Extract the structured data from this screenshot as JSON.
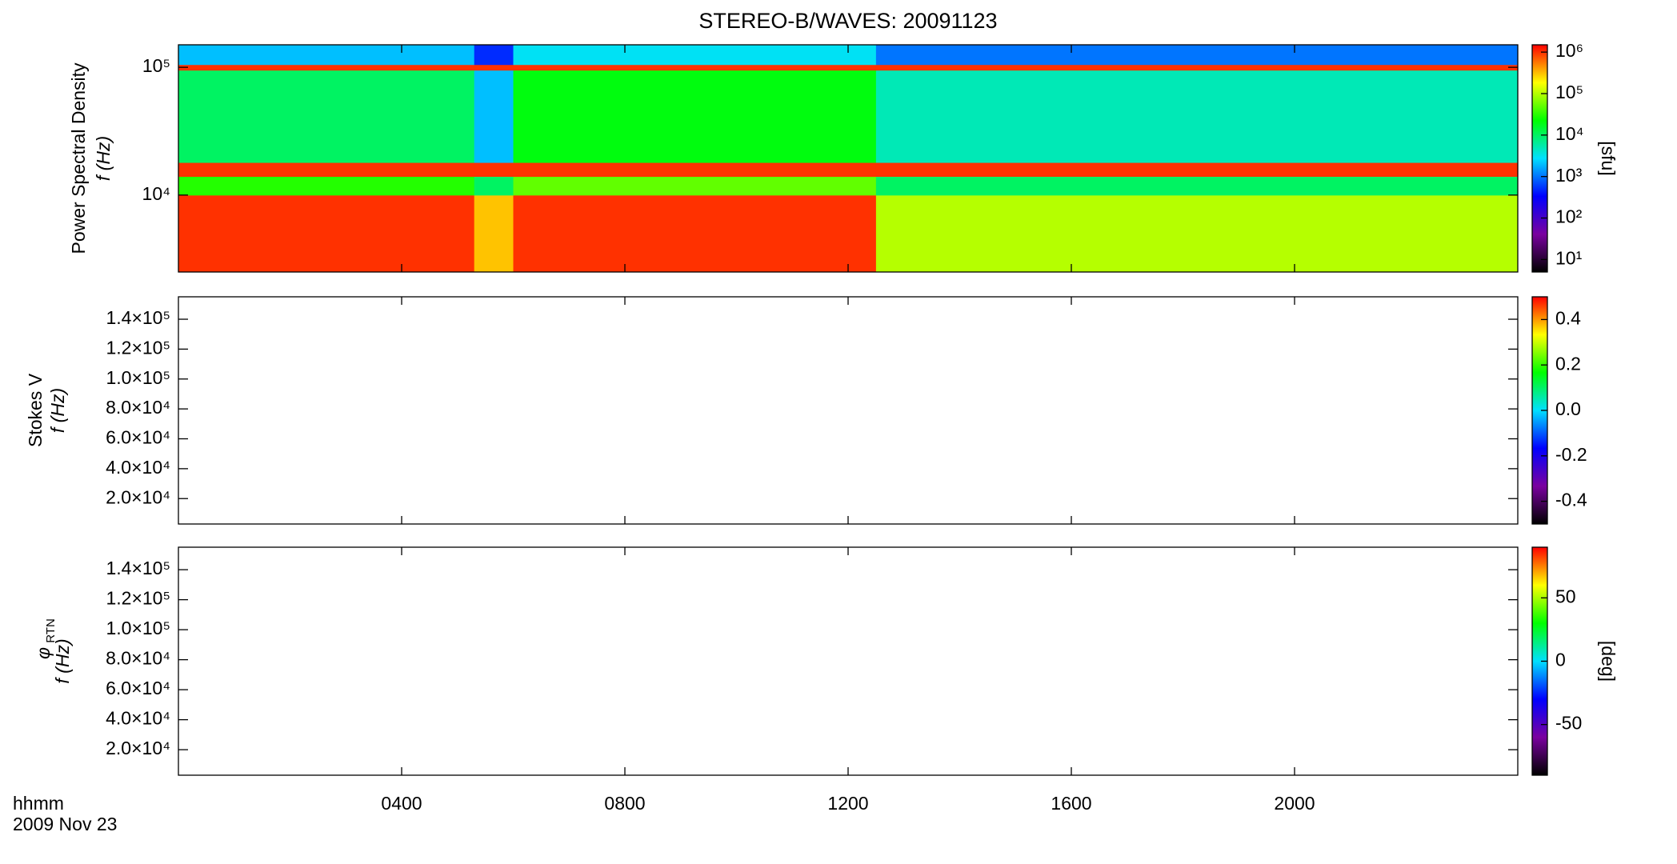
{
  "title": "STEREO-B/WAVES: 20091123",
  "time_axis": {
    "xlim": [
      0,
      24
    ],
    "xticks": [
      {
        "value": 4,
        "label": "0400"
      },
      {
        "value": 8,
        "label": "0800"
      },
      {
        "value": 12,
        "label": "1200"
      },
      {
        "value": 16,
        "label": "1600"
      },
      {
        "value": 20,
        "label": "2000"
      }
    ],
    "label_lines": [
      "hhmm",
      "2009 Nov 23"
    ]
  },
  "colorscale": [
    "#000000",
    "#7a00a0",
    "#0000ff",
    "#00e0ff",
    "#00ff00",
    "#ffff00",
    "#ff0000"
  ],
  "chart_data": [
    {
      "type": "heatmap",
      "ylabel": [
        "Power Spectral Density",
        "f (Hz)"
      ],
      "log_y": true,
      "ylim": [
        2500,
        150000
      ],
      "yticks": [
        {
          "value": 10000,
          "label": "10⁴"
        },
        {
          "value": 100000,
          "label": "10⁵"
        }
      ],
      "x_edges": [
        0,
        5.3,
        6.0,
        12.5,
        24
      ],
      "y_edges": [
        2500,
        10000,
        14000,
        18000,
        95000,
        105000,
        150000
      ],
      "values": [
        [
          1000000,
          300000,
          1000000,
          100000
        ],
        [
          30000,
          10000,
          50000,
          10000
        ],
        [
          1000000,
          1000000,
          1000000,
          1000000
        ],
        [
          10000,
          2000,
          20000,
          5000
        ],
        [
          1000000,
          1000000,
          1000000,
          1000000
        ],
        [
          2000,
          500,
          3000,
          1000
        ]
      ],
      "colorbar": {
        "log": true,
        "lim": [
          5,
          1500000
        ],
        "label": "[sfu]",
        "ticks": [
          {
            "value": 10,
            "label": "10¹"
          },
          {
            "value": 100,
            "label": "10²"
          },
          {
            "value": 1000,
            "label": "10³"
          },
          {
            "value": 10000,
            "label": "10⁴"
          },
          {
            "value": 100000,
            "label": "10⁵"
          },
          {
            "value": 1000000,
            "label": "10⁶"
          }
        ]
      }
    },
    {
      "type": "heatmap",
      "ylabel": [
        "Stokes V",
        "f (Hz)"
      ],
      "log_y": false,
      "ylim": [
        3000,
        155000
      ],
      "yticks": [
        {
          "value": 20000,
          "label": "2.0×10⁴"
        },
        {
          "value": 40000,
          "label": "4.0×10⁴"
        },
        {
          "value": 60000,
          "label": "6.0×10⁴"
        },
        {
          "value": 80000,
          "label": "8.0×10⁴"
        },
        {
          "value": 100000,
          "label": "1.0×10⁵"
        },
        {
          "value": 120000,
          "label": "1.2×10⁵"
        },
        {
          "value": 140000,
          "label": "1.4×10⁵"
        }
      ],
      "colorbar": {
        "log": false,
        "lim": [
          -0.5,
          0.5
        ],
        "ticks": [
          -0.4,
          -0.2,
          {
            "value": 0,
            "label": "0.0"
          },
          0.2,
          0.4
        ]
      }
    },
    {
      "type": "heatmap",
      "ylabel": [
        "φ",
        "RTN",
        "f (Hz)"
      ],
      "log_y": false,
      "ylim": [
        3000,
        155000
      ],
      "yticks": [
        {
          "value": 20000,
          "label": "2.0×10⁴"
        },
        {
          "value": 40000,
          "label": "4.0×10⁴"
        },
        {
          "value": 60000,
          "label": "6.0×10⁴"
        },
        {
          "value": 80000,
          "label": "8.0×10⁴"
        },
        {
          "value": 100000,
          "label": "1.0×10⁵"
        },
        {
          "value": 120000,
          "label": "1.2×10⁵"
        },
        {
          "value": 140000,
          "label": "1.4×10⁵"
        }
      ],
      "colorbar": {
        "log": false,
        "lim": [
          -90,
          90
        ],
        "label": "[deg]",
        "ticks": [
          -50,
          0,
          50
        ]
      }
    }
  ]
}
